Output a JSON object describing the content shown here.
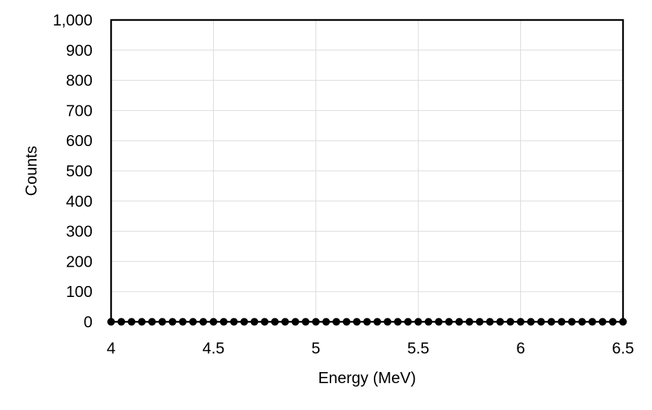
{
  "chart_data": {
    "type": "scatter",
    "title": "",
    "xlabel": "Energy (MeV)",
    "ylabel": "Counts",
    "xlim": [
      4,
      6.5
    ],
    "ylim": [
      0,
      1000
    ],
    "x_ticks": [
      4,
      4.5,
      5,
      5.5,
      6,
      6.5
    ],
    "x_tick_labels": [
      "4",
      "4.5",
      "5",
      "5.5",
      "6",
      "6.5"
    ],
    "y_ticks": [
      0,
      100,
      200,
      300,
      400,
      500,
      600,
      700,
      800,
      900,
      1000
    ],
    "y_tick_labels": [
      "0",
      "100",
      "200",
      "300",
      "400",
      "500",
      "600",
      "700",
      "800",
      "900",
      "1,000"
    ],
    "grid": true,
    "legend": "none",
    "series": [
      {
        "marker_color": "#000000",
        "x": [
          4.0,
          4.05,
          4.1,
          4.15,
          4.2,
          4.25,
          4.3,
          4.35,
          4.4,
          4.45,
          4.5,
          4.55,
          4.6,
          4.65,
          4.7,
          4.75,
          4.8,
          4.85,
          4.9,
          4.95,
          5.0,
          5.05,
          5.1,
          5.15,
          5.2,
          5.25,
          5.3,
          5.35,
          5.4,
          5.45,
          5.5,
          5.55,
          5.6,
          5.65,
          5.7,
          5.75,
          5.8,
          5.85,
          5.9,
          5.95,
          6.0,
          6.05,
          6.1,
          6.15,
          6.2,
          6.25,
          6.3,
          6.35,
          6.4,
          6.45,
          6.5
        ],
        "y": [
          0,
          0,
          0,
          0,
          0,
          0,
          0,
          0,
          0,
          0,
          0,
          0,
          0,
          0,
          0,
          0,
          0,
          0,
          0,
          0,
          0,
          0,
          0,
          0,
          0,
          0,
          0,
          0,
          0,
          0,
          0,
          0,
          0,
          0,
          0,
          0,
          0,
          0,
          0,
          0,
          0,
          0,
          0,
          0,
          0,
          0,
          0,
          0,
          0,
          0,
          0
        ]
      }
    ],
    "colors": {
      "grid": "#d9d9d9",
      "axis": "#000000",
      "marker": "#000000"
    }
  }
}
